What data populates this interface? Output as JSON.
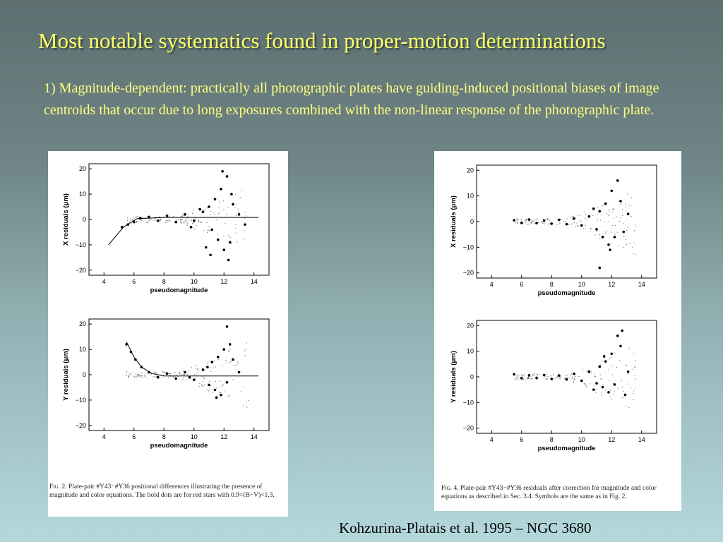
{
  "slide": {
    "title": "Most notable systematics found in proper-motion determinations",
    "body": "1) Magnitude-dependent: practically all photographic plates have guiding-induced positional biases of image centroids that occur due to long exposures combined with the non-linear response of the photographic plate.",
    "credit": "Kohzurina-Platais et al. 1995 – NGC 3680",
    "colors": {
      "background_top": "#5d6f70",
      "background_bottom": "#b4d8dc",
      "title": "#ffff66",
      "body_text": "#ffff80"
    }
  },
  "figures": {
    "left": {
      "caption_label": "Fig. 2.",
      "caption": "Plate-pair #Y43−#Y36 positional differences illustrating the presence of magnitude and color equations. The bold dots are for red stars with 0.9<(B−V)<1.3."
    },
    "right": {
      "caption_label": "Fig. 4.",
      "caption": "Plate-pair #Y43−#Y36 residuals after correction for magnitude and color equations as described in Sec. 3.4. Symbols are the same as in Fig. 2."
    }
  },
  "chart_data": [
    {
      "type": "scatter",
      "panel": "fig2-top",
      "xlabel": "pseudomagnitude",
      "ylabel": "X residuals (μm)",
      "xlim": [
        3,
        15
      ],
      "ylim": [
        -22,
        22
      ],
      "x_ticks": [
        "4",
        "6",
        "8",
        "10",
        "12",
        "14"
      ],
      "y_ticks": [
        "20",
        "10",
        "0",
        "−10",
        "−20"
      ],
      "trend": [
        [
          4.3,
          -10
        ],
        [
          5.3,
          -3
        ],
        [
          6.2,
          0.3
        ],
        [
          8,
          0.8
        ],
        [
          10,
          0.8
        ],
        [
          12,
          0.8
        ],
        [
          14.3,
          0.8
        ]
      ],
      "points": [
        [
          5.2,
          -3
        ],
        [
          5.6,
          -2
        ],
        [
          6,
          -1
        ],
        [
          6.4,
          0.5
        ],
        [
          7,
          1
        ],
        [
          7.6,
          -0.5
        ],
        [
          8.2,
          1.5
        ],
        [
          8.8,
          -1
        ],
        [
          9.4,
          2
        ],
        [
          10,
          -0.5
        ],
        [
          10.6,
          3
        ],
        [
          11,
          5
        ],
        [
          11.2,
          -4
        ],
        [
          11.4,
          8
        ],
        [
          11.6,
          -8
        ],
        [
          11.8,
          12
        ],
        [
          12,
          -12
        ],
        [
          12.2,
          17
        ],
        [
          12.4,
          -9
        ],
        [
          12.6,
          6
        ],
        [
          11.1,
          -14
        ],
        [
          10.8,
          -11
        ],
        [
          12.3,
          -16
        ],
        [
          11.9,
          19
        ],
        [
          12.5,
          10
        ],
        [
          10.4,
          4
        ],
        [
          9.8,
          -3
        ],
        [
          13,
          2
        ],
        [
          13.4,
          -2
        ]
      ]
    },
    {
      "type": "scatter",
      "panel": "fig2-bottom",
      "xlabel": "pseudomagnitude",
      "ylabel": "Y residuals (μm)",
      "xlim": [
        3,
        15
      ],
      "ylim": [
        -22,
        22
      ],
      "x_ticks": [
        "4",
        "6",
        "8",
        "10",
        "12",
        "14"
      ],
      "y_ticks": [
        "20",
        "10",
        "0",
        "−10",
        "−20"
      ],
      "trend": [
        [
          5.5,
          13
        ],
        [
          6,
          7
        ],
        [
          6.5,
          3
        ],
        [
          7.2,
          0.5
        ],
        [
          8,
          -0.5
        ],
        [
          9,
          -0.5
        ],
        [
          10,
          -0.5
        ],
        [
          12,
          -0.5
        ],
        [
          14.3,
          -0.5
        ]
      ],
      "points": [
        [
          5.5,
          12
        ],
        [
          5.8,
          9
        ],
        [
          6.1,
          6
        ],
        [
          6.5,
          3
        ],
        [
          7,
          1
        ],
        [
          7.6,
          -1
        ],
        [
          8.2,
          0.5
        ],
        [
          8.8,
          -1.5
        ],
        [
          9.4,
          1
        ],
        [
          10,
          -2
        ],
        [
          10.6,
          2
        ],
        [
          11,
          -4
        ],
        [
          11.2,
          5
        ],
        [
          11.4,
          -6
        ],
        [
          11.6,
          7
        ],
        [
          11.8,
          -8
        ],
        [
          12,
          10
        ],
        [
          12.2,
          -3
        ],
        [
          12.4,
          12
        ],
        [
          12.6,
          6
        ],
        [
          12.2,
          19
        ],
        [
          11.5,
          -9
        ],
        [
          10.9,
          3
        ],
        [
          9.7,
          -1
        ],
        [
          13,
          1
        ]
      ]
    },
    {
      "type": "scatter",
      "panel": "fig4-top",
      "xlabel": "pseudomagnitude",
      "ylabel": "X residuals (μm)",
      "xlim": [
        3,
        15
      ],
      "ylim": [
        -22,
        22
      ],
      "x_ticks": [
        "4",
        "6",
        "8",
        "10",
        "12",
        "14"
      ],
      "y_ticks": [
        "20",
        "10",
        "0",
        "−10",
        "−20"
      ],
      "points": [
        [
          5.5,
          0.5
        ],
        [
          6,
          -0.5
        ],
        [
          6.5,
          0.8
        ],
        [
          7,
          -0.6
        ],
        [
          7.5,
          0.4
        ],
        [
          8,
          -0.8
        ],
        [
          8.5,
          0.7
        ],
        [
          9,
          -1
        ],
        [
          9.5,
          1.2
        ],
        [
          10,
          -1.5
        ],
        [
          10.5,
          2
        ],
        [
          11,
          -3
        ],
        [
          11.2,
          4
        ],
        [
          11.4,
          -6
        ],
        [
          11.6,
          7
        ],
        [
          11.8,
          -9
        ],
        [
          12,
          12
        ],
        [
          12.2,
          -6
        ],
        [
          12.4,
          16
        ],
        [
          12.6,
          8
        ],
        [
          11.2,
          -18
        ],
        [
          11.9,
          -11
        ],
        [
          10.8,
          5
        ],
        [
          13.1,
          3
        ],
        [
          12.8,
          -4
        ]
      ]
    },
    {
      "type": "scatter",
      "panel": "fig4-bottom",
      "xlabel": "pseudomagnitude",
      "ylabel": "Y residuals (μm)",
      "xlim": [
        3,
        15
      ],
      "ylim": [
        -22,
        22
      ],
      "x_ticks": [
        "4",
        "6",
        "8",
        "10",
        "12",
        "14"
      ],
      "y_ticks": [
        "20",
        "10",
        "0",
        "−10",
        "−20"
      ],
      "points": [
        [
          5.5,
          1
        ],
        [
          6,
          -0.5
        ],
        [
          6.5,
          0.6
        ],
        [
          7,
          -0.4
        ],
        [
          7.5,
          0.7
        ],
        [
          8,
          -0.8
        ],
        [
          8.5,
          0.5
        ],
        [
          9,
          -1
        ],
        [
          9.5,
          1.2
        ],
        [
          10,
          -1.5
        ],
        [
          10.5,
          2
        ],
        [
          11,
          -2.5
        ],
        [
          11.2,
          4
        ],
        [
          11.4,
          -4
        ],
        [
          11.6,
          6
        ],
        [
          11.8,
          -6
        ],
        [
          12,
          9
        ],
        [
          12.2,
          -3
        ],
        [
          12.4,
          16
        ],
        [
          12.6,
          12
        ],
        [
          12.7,
          18
        ],
        [
          11.5,
          8
        ],
        [
          10.8,
          -5
        ],
        [
          13.1,
          2
        ],
        [
          12.9,
          -7
        ]
      ]
    }
  ]
}
